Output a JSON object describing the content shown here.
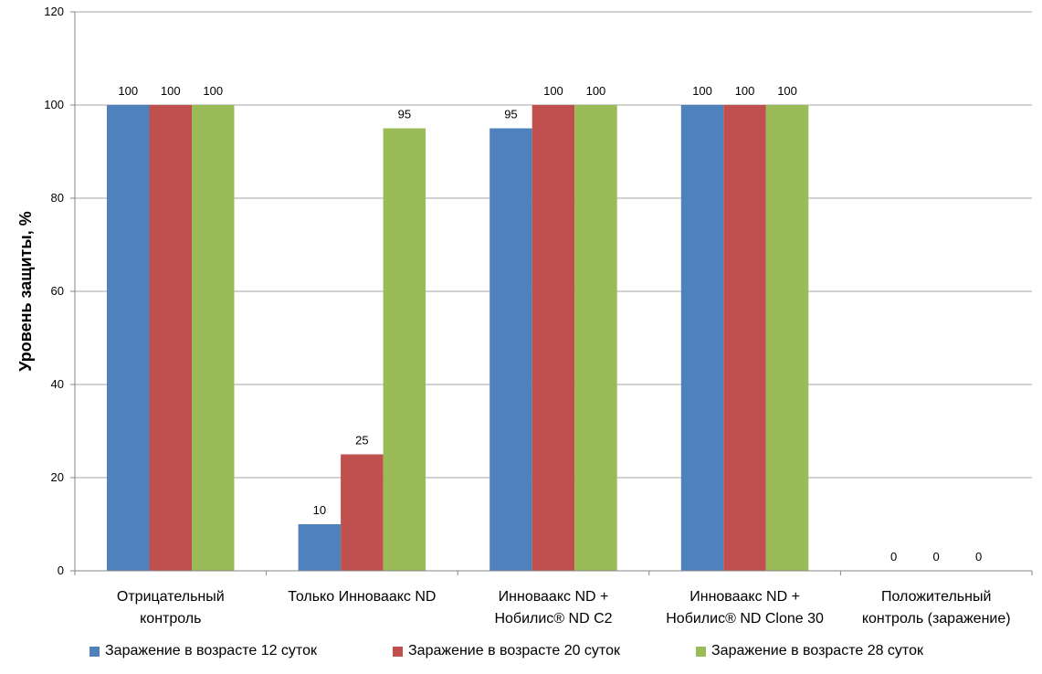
{
  "chart_data": {
    "type": "bar",
    "title": "",
    "ylabel": "Уровень защиты, %",
    "xlabel": "",
    "ylim": [
      0,
      120
    ],
    "yticks": [
      0,
      20,
      40,
      60,
      80,
      100,
      120
    ],
    "grid": true,
    "legend_position": "bottom",
    "categories": [
      [
        "Отрицательный",
        "контроль"
      ],
      [
        "Только Инноваакс ND"
      ],
      [
        "Инноваакс ND +",
        "Нобилис® ND C2"
      ],
      [
        "Инноваакс ND +",
        "Нобилис® ND Clone 30"
      ],
      [
        "Положительный",
        "контроль (заражение)"
      ]
    ],
    "series": [
      {
        "name": "Заражение в возрасте 12 суток",
        "color": "#4F81BD",
        "values": [
          100,
          10,
          95,
          100,
          0
        ]
      },
      {
        "name": "Заражение в возрасте 20 суток",
        "color": "#C0504D",
        "values": [
          100,
          25,
          100,
          100,
          0
        ]
      },
      {
        "name": "Заражение в возрасте 28 суток",
        "color": "#9BBB59",
        "values": [
          100,
          95,
          100,
          100,
          0
        ]
      }
    ]
  }
}
